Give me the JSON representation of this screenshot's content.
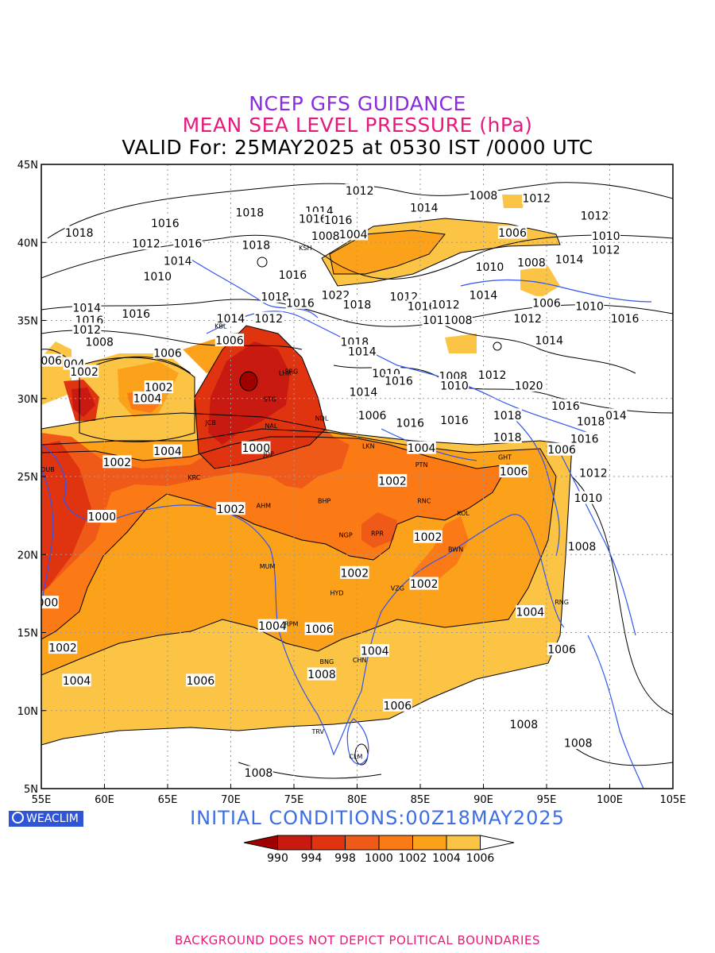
{
  "header": {
    "line1": "NCEP GFS GUIDANCE",
    "line2": "MEAN SEA LEVEL PRESSURE (hPa)",
    "line3": "VALID For: 25MAY2025 at 0530 IST /0000 UTC"
  },
  "map": {
    "lon_range": [
      55,
      105
    ],
    "lat_range": [
      5,
      45
    ],
    "lon_ticks": [
      "55E",
      "60E",
      "65E",
      "70E",
      "75E",
      "80E",
      "85E",
      "90E",
      "95E",
      "100E",
      "105E"
    ],
    "lat_ticks": [
      "5N",
      "10N",
      "15N",
      "20N",
      "25N",
      "30N",
      "35N",
      "40N",
      "45N"
    ],
    "grid": "dotted gray",
    "colors": {
      "c990": "#a00000",
      "c994": "#c81a10",
      "c998": "#e0330f",
      "c1000": "#f05a18",
      "c1002": "#fb7a16",
      "c1004": "#fca11a",
      "c1006": "#fcc444",
      "coast": "#3355ee"
    },
    "contour_labels": [
      {
        "text": "1018",
        "lon": 58.0,
        "lat": 40.6
      },
      {
        "text": "1016",
        "lon": 64.8,
        "lat": 41.2
      },
      {
        "text": "1018",
        "lon": 71.5,
        "lat": 41.9
      },
      {
        "text": "1012",
        "lon": 80.2,
        "lat": 43.3
      },
      {
        "text": "1008",
        "lon": 90.0,
        "lat": 43.0
      },
      {
        "text": "1012",
        "lon": 94.2,
        "lat": 42.8
      },
      {
        "text": "1012",
        "lon": 98.8,
        "lat": 41.7
      },
      {
        "text": "1014",
        "lon": 77.0,
        "lat": 42.0
      },
      {
        "text": "1016",
        "lon": 76.5,
        "lat": 41.5
      },
      {
        "text": "1016",
        "lon": 78.5,
        "lat": 41.4
      },
      {
        "text": "1014",
        "lon": 85.3,
        "lat": 42.2
      },
      {
        "text": "1006",
        "lon": 92.3,
        "lat": 40.6
      },
      {
        "text": "1010",
        "lon": 99.7,
        "lat": 40.4
      },
      {
        "text": "1012",
        "lon": 63.3,
        "lat": 39.9
      },
      {
        "text": "1016",
        "lon": 66.6,
        "lat": 39.9
      },
      {
        "text": "1018",
        "lon": 72.0,
        "lat": 39.8
      },
      {
        "text": "1008",
        "lon": 77.5,
        "lat": 40.4
      },
      {
        "text": "1004",
        "lon": 79.7,
        "lat": 40.5
      },
      {
        "text": "1012",
        "lon": 99.7,
        "lat": 39.5
      },
      {
        "text": "1014",
        "lon": 96.8,
        "lat": 38.9
      },
      {
        "text": "1010",
        "lon": 90.5,
        "lat": 38.4
      },
      {
        "text": "1008",
        "lon": 93.8,
        "lat": 38.7
      },
      {
        "text": "1014",
        "lon": 65.8,
        "lat": 38.8
      },
      {
        "text": "1010",
        "lon": 64.2,
        "lat": 37.8
      },
      {
        "text": "1016",
        "lon": 74.9,
        "lat": 37.9
      },
      {
        "text": "1022",
        "lon": 78.3,
        "lat": 36.6
      },
      {
        "text": "1018",
        "lon": 73.5,
        "lat": 36.5
      },
      {
        "text": "1016",
        "lon": 75.5,
        "lat": 36.1
      },
      {
        "text": "1018",
        "lon": 80.0,
        "lat": 36.0
      },
      {
        "text": "1012",
        "lon": 83.7,
        "lat": 36.5
      },
      {
        "text": "1014",
        "lon": 90.0,
        "lat": 36.6
      },
      {
        "text": "1016",
        "lon": 85.1,
        "lat": 35.9
      },
      {
        "text": "1012",
        "lon": 87.0,
        "lat": 36.0
      },
      {
        "text": "1006",
        "lon": 95.0,
        "lat": 36.1
      },
      {
        "text": "1010",
        "lon": 98.4,
        "lat": 35.9
      },
      {
        "text": "1014",
        "lon": 58.6,
        "lat": 35.8
      },
      {
        "text": "1016",
        "lon": 58.8,
        "lat": 35.0
      },
      {
        "text": "1016",
        "lon": 62.5,
        "lat": 35.4
      },
      {
        "text": "1014",
        "lon": 70.0,
        "lat": 35.1
      },
      {
        "text": "1012",
        "lon": 73.0,
        "lat": 35.1
      },
      {
        "text": "1010",
        "lon": 86.3,
        "lat": 35.0
      },
      {
        "text": "1008",
        "lon": 88.0,
        "lat": 35.0
      },
      {
        "text": "1012",
        "lon": 93.5,
        "lat": 35.1
      },
      {
        "text": "1016",
        "lon": 101.2,
        "lat": 35.1
      },
      {
        "text": "1012",
        "lon": 58.6,
        "lat": 34.4
      },
      {
        "text": "1008",
        "lon": 59.6,
        "lat": 33.6
      },
      {
        "text": "1006",
        "lon": 69.9,
        "lat": 33.7
      },
      {
        "text": "1018",
        "lon": 79.8,
        "lat": 33.6
      },
      {
        "text": "1014",
        "lon": 95.2,
        "lat": 33.7
      },
      {
        "text": "1006",
        "lon": 65.0,
        "lat": 32.9
      },
      {
        "text": "1014",
        "lon": 80.4,
        "lat": 33.0
      },
      {
        "text": "006",
        "lon": 55.8,
        "lat": 32.4
      },
      {
        "text": "004",
        "lon": 57.6,
        "lat": 32.2
      },
      {
        "text": "1002",
        "lon": 58.4,
        "lat": 31.7
      },
      {
        "text": "1010",
        "lon": 82.3,
        "lat": 31.6
      },
      {
        "text": "1008",
        "lon": 87.6,
        "lat": 31.4
      },
      {
        "text": "1012",
        "lon": 90.7,
        "lat": 31.5
      },
      {
        "text": "1002",
        "lon": 64.3,
        "lat": 30.7
      },
      {
        "text": "1016",
        "lon": 83.3,
        "lat": 31.1
      },
      {
        "text": "1010",
        "lon": 87.7,
        "lat": 30.8
      },
      {
        "text": "1020",
        "lon": 93.6,
        "lat": 30.8
      },
      {
        "text": "1004",
        "lon": 63.4,
        "lat": 30.0
      },
      {
        "text": "1014",
        "lon": 80.5,
        "lat": 30.4
      },
      {
        "text": "1016",
        "lon": 96.5,
        "lat": 29.5
      },
      {
        "text": "1018",
        "lon": 91.9,
        "lat": 28.9
      },
      {
        "text": "1006",
        "lon": 81.2,
        "lat": 28.9
      },
      {
        "text": "1016",
        "lon": 84.2,
        "lat": 28.4
      },
      {
        "text": "1016",
        "lon": 87.7,
        "lat": 28.6
      },
      {
        "text": "1018",
        "lon": 98.5,
        "lat": 28.5
      },
      {
        "text": "014",
        "lon": 100.5,
        "lat": 28.9
      },
      {
        "text": "1018",
        "lon": 91.9,
        "lat": 27.5
      },
      {
        "text": "1016",
        "lon": 98.0,
        "lat": 27.4
      },
      {
        "text": "1004",
        "lon": 65.0,
        "lat": 26.6
      },
      {
        "text": "1000",
        "lon": 72.0,
        "lat": 26.8
      },
      {
        "text": "1004",
        "lon": 85.1,
        "lat": 26.8
      },
      {
        "text": "1006",
        "lon": 96.2,
        "lat": 26.7
      },
      {
        "text": "1002",
        "lon": 61.0,
        "lat": 25.9
      },
      {
        "text": "1012",
        "lon": 98.7,
        "lat": 25.2
      },
      {
        "text": "1002",
        "lon": 82.8,
        "lat": 24.7
      },
      {
        "text": "1006",
        "lon": 92.4,
        "lat": 25.3
      },
      {
        "text": "1010",
        "lon": 98.3,
        "lat": 23.6
      },
      {
        "text": "1002",
        "lon": 70.0,
        "lat": 22.9
      },
      {
        "text": "1000",
        "lon": 59.8,
        "lat": 22.4
      },
      {
        "text": "1002",
        "lon": 85.6,
        "lat": 21.1
      },
      {
        "text": "1008",
        "lon": 97.8,
        "lat": 20.5
      },
      {
        "text": "1002",
        "lon": 79.8,
        "lat": 18.8
      },
      {
        "text": "1002",
        "lon": 85.3,
        "lat": 18.1
      },
      {
        "text": "000",
        "lon": 55.5,
        "lat": 16.9
      },
      {
        "text": "1004",
        "lon": 93.7,
        "lat": 16.3
      },
      {
        "text": "1004",
        "lon": 73.3,
        "lat": 15.4
      },
      {
        "text": "1006",
        "lon": 77.0,
        "lat": 15.2
      },
      {
        "text": "1002",
        "lon": 56.7,
        "lat": 14.0
      },
      {
        "text": "1006",
        "lon": 96.2,
        "lat": 13.9
      },
      {
        "text": "1004",
        "lon": 81.4,
        "lat": 13.8
      },
      {
        "text": "1008",
        "lon": 77.2,
        "lat": 12.3
      },
      {
        "text": "1004",
        "lon": 57.8,
        "lat": 11.9
      },
      {
        "text": "1006",
        "lon": 67.6,
        "lat": 11.9
      },
      {
        "text": "1006",
        "lon": 83.2,
        "lat": 10.3
      },
      {
        "text": "1008",
        "lon": 93.2,
        "lat": 9.1
      },
      {
        "text": "1008",
        "lon": 97.5,
        "lat": 7.9
      },
      {
        "text": "1008",
        "lon": 72.2,
        "lat": 6.0
      }
    ],
    "stations": [
      {
        "text": "DUB",
        "lon": 55.5,
        "lat": 25.3
      },
      {
        "text": "KRC",
        "lon": 67.1,
        "lat": 24.8
      },
      {
        "text": "AHM",
        "lon": 72.6,
        "lat": 23.0
      },
      {
        "text": "MUM",
        "lon": 72.9,
        "lat": 19.1
      },
      {
        "text": "HYD",
        "lon": 78.4,
        "lat": 17.4
      },
      {
        "text": "CHN",
        "lon": 80.2,
        "lat": 13.1
      },
      {
        "text": "TRV",
        "lon": 76.9,
        "lat": 8.5
      },
      {
        "text": "CLM",
        "lon": 79.9,
        "lat": 6.9
      },
      {
        "text": "JCB",
        "lon": 68.4,
        "lat": 28.3
      },
      {
        "text": "NAL",
        "lon": 73.2,
        "lat": 28.1
      },
      {
        "text": "JDP",
        "lon": 73.0,
        "lat": 26.3
      },
      {
        "text": "BHP",
        "lon": 77.4,
        "lat": 23.3
      },
      {
        "text": "NGP",
        "lon": 79.1,
        "lat": 21.1
      },
      {
        "text": "RPR",
        "lon": 81.6,
        "lat": 21.2
      },
      {
        "text": "VZG",
        "lon": 83.2,
        "lat": 17.7
      },
      {
        "text": "BWN",
        "lon": 87.8,
        "lat": 20.2
      },
      {
        "text": "KOL",
        "lon": 88.4,
        "lat": 22.5
      },
      {
        "text": "RNC",
        "lon": 85.3,
        "lat": 23.3
      },
      {
        "text": "PTN",
        "lon": 85.1,
        "lat": 25.6
      },
      {
        "text": "LKN",
        "lon": 80.9,
        "lat": 26.8
      },
      {
        "text": "NDL",
        "lon": 77.2,
        "lat": 28.6
      },
      {
        "text": "SRG",
        "lon": 74.8,
        "lat": 31.6
      },
      {
        "text": "LHR",
        "lon": 74.3,
        "lat": 31.5
      },
      {
        "text": "STG",
        "lon": 73.1,
        "lat": 29.8
      },
      {
        "text": "GHT",
        "lon": 91.7,
        "lat": 26.1
      },
      {
        "text": "RNG",
        "lon": 96.2,
        "lat": 16.8
      },
      {
        "text": "KSH",
        "lon": 75.9,
        "lat": 39.5
      },
      {
        "text": "KBL",
        "lon": 69.2,
        "lat": 34.5
      },
      {
        "text": "RPM",
        "lon": 74.8,
        "lat": 15.4
      },
      {
        "text": "BNG",
        "lon": 77.6,
        "lat": 13.0
      }
    ]
  },
  "initial_conditions": "INITIAL CONDITIONS:00Z18MAY2025",
  "logo_text": "WEACLIM",
  "colorbar": {
    "ticks": [
      "990",
      "994",
      "998",
      "1000",
      "1002",
      "1004",
      "1006"
    ],
    "colors": [
      "#a00000",
      "#c81a10",
      "#e0330f",
      "#f05a18",
      "#fb7a16",
      "#fca11a",
      "#fcc444"
    ]
  },
  "footer": "BACKGROUND DOES NOT DEPICT POLITICAL BOUNDARIES"
}
